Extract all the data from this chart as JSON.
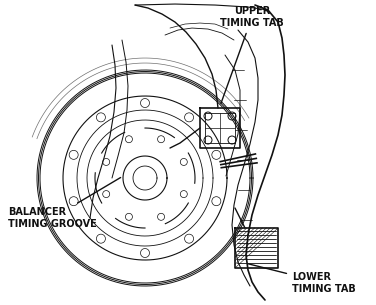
{
  "background_color": "#f5f5f0",
  "labels": {
    "upper_timing_tab": "UPPER\nTIMING TAB",
    "lower_timing_tab": "LOWER\nTIMING TAB",
    "balancer_timing_groove": "BALANCER\nTIMING GROOVE"
  },
  "fig_width": 3.76,
  "fig_height": 3.05,
  "dpi": 100,
  "label_fontsize": 7.0,
  "color": "#111111"
}
